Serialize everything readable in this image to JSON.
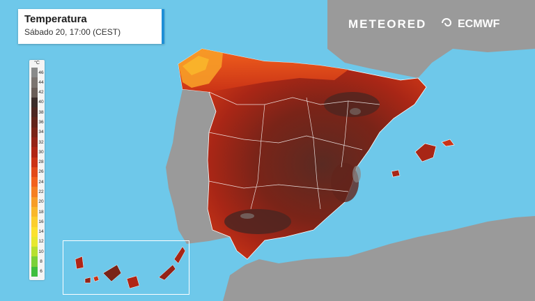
{
  "header": {
    "title": "Temperatura",
    "subtitle": "Sábado 20, 17:00 (CEST)"
  },
  "brand": {
    "meteored": "METEORED",
    "ecmwf": "ECMWF"
  },
  "legend": {
    "unit": "°C",
    "stops": [
      {
        "value": "46",
        "color": "#8a8a8a"
      },
      {
        "value": "44",
        "color": "#7c7470"
      },
      {
        "value": "42",
        "color": "#6a5d58"
      },
      {
        "value": "40",
        "color": "#3b2c2a"
      },
      {
        "value": "38",
        "color": "#4d2621"
      },
      {
        "value": "36",
        "color": "#62241b"
      },
      {
        "value": "34",
        "color": "#7a2418"
      },
      {
        "value": "32",
        "color": "#952317"
      },
      {
        "value": "30",
        "color": "#b02515"
      },
      {
        "value": "28",
        "color": "#cb3316"
      },
      {
        "value": "26",
        "color": "#e24a1a"
      },
      {
        "value": "24",
        "color": "#f2611d"
      },
      {
        "value": "22",
        "color": "#f57f22"
      },
      {
        "value": "20",
        "color": "#f79d28"
      },
      {
        "value": "18",
        "color": "#f9b72c"
      },
      {
        "value": "16",
        "color": "#fbce2e"
      },
      {
        "value": "14",
        "color": "#fbe12f"
      },
      {
        "value": "12",
        "color": "#e7e82f"
      },
      {
        "value": "10",
        "color": "#b7e031"
      },
      {
        "value": "8",
        "color": "#7bd13a"
      },
      {
        "value": "6",
        "color": "#3fbe3e"
      }
    ]
  },
  "colors": {
    "sea": "#6ec8ea",
    "land_other": "#9a9a9a",
    "border": "#ffffff",
    "accent": "#1f8fd6"
  }
}
